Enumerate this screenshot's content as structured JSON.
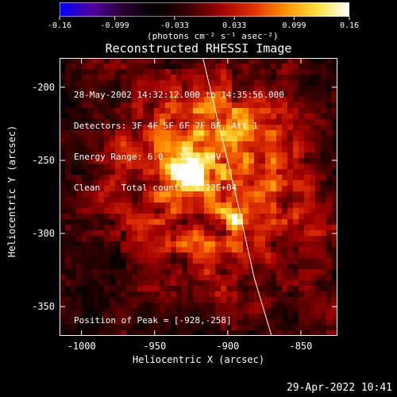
{
  "colorbar": {
    "ticks": [
      -0.16,
      -0.099,
      -0.033,
      0.033,
      0.099,
      0.16
    ],
    "tick_labels": [
      "-0.16",
      "-0.099",
      "-0.033",
      "0.033",
      "0.099",
      "0.16"
    ],
    "unit_label": "(photons cm⁻² s⁻¹ asec⁻²)",
    "range": [
      -0.16,
      0.16
    ],
    "colors": [
      "#0000ff",
      "#5000a0",
      "#280030",
      "#000000",
      "#3a0000",
      "#a00000",
      "#e03000",
      "#ff9000",
      "#ffe040",
      "#ffffff"
    ]
  },
  "chart_data": {
    "type": "heatmap",
    "title": "Reconstructed RHESSI Image",
    "xlabel": "Heliocentric X (arcsec)",
    "ylabel": "Heliocentric Y (arcsec)",
    "xlim": [
      -1015,
      -825
    ],
    "ylim": [
      -370,
      -180
    ],
    "xticks": [
      -1000,
      -950,
      -900,
      -850
    ],
    "xtick_labels": [
      "-1000",
      "-950",
      "-900",
      "-850"
    ],
    "yticks": [
      -200,
      -250,
      -300,
      -350
    ],
    "ytick_labels": [
      "-200",
      "-250",
      "-300",
      "-350"
    ],
    "annotations": [
      "28-May-2002 14:32:12.000 to 14:35:56.000",
      "Detectors: 3F 4F 5F 6F 7F 8F, Att 1",
      "Energy Range: 6.0 - 12.0 keV",
      "Clean    Total counts: 1.22E+04"
    ],
    "peak_label": "Position of Peak = [-928,-258]",
    "peak": [
      -928,
      -258
    ],
    "secondary_source": [
      -896,
      -290
    ],
    "limb_curve": [
      [
        -917,
        -180
      ],
      [
        -905,
        -230
      ],
      [
        -893,
        -280
      ],
      [
        -882,
        -330
      ],
      [
        -870,
        -370
      ]
    ]
  },
  "timestamp": "29-Apr-2022 10:41"
}
